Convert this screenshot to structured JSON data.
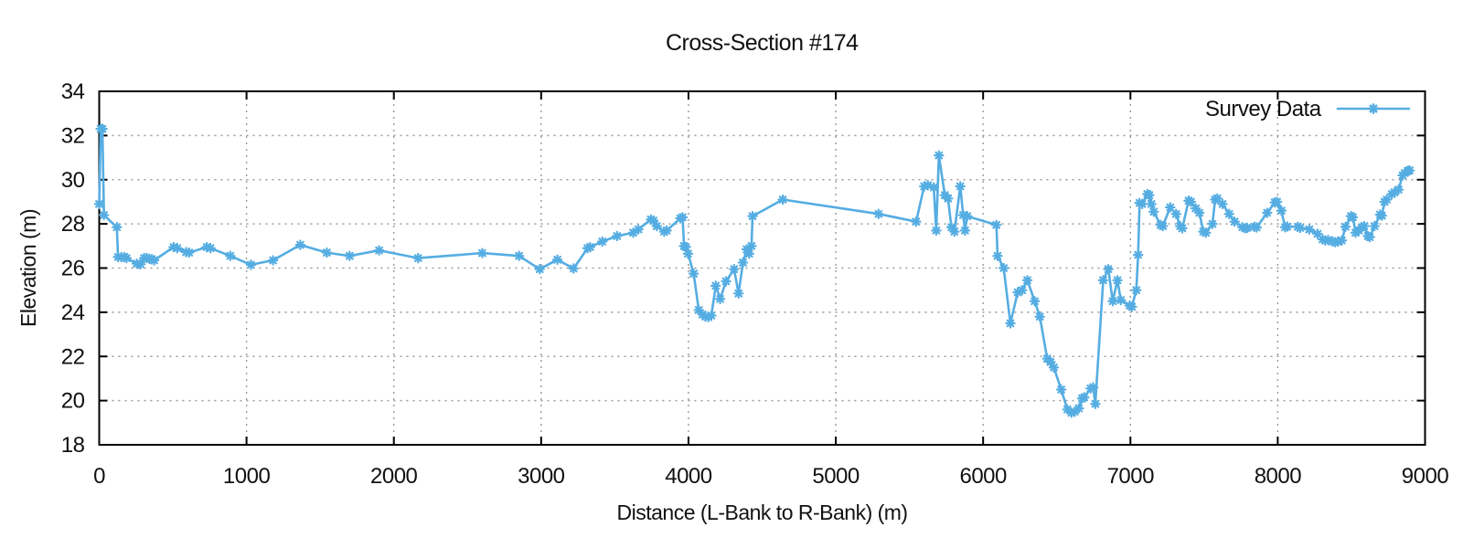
{
  "title": "Cross-Section #174",
  "legend": {
    "label": "Survey Data"
  },
  "colors": {
    "series": "#55ade2",
    "grid": "#9a9a9a",
    "axis": "#000000",
    "text": "#111111",
    "background": "#ffffff"
  },
  "chart_data": {
    "type": "line",
    "title": "Cross-Section #174",
    "xlabel": "Distance (L-Bank to R-Bank) (m)",
    "ylabel": "Elevation (m)",
    "xlim": [
      0,
      9000
    ],
    "ylim": [
      18,
      34
    ],
    "xticks": [
      0,
      1000,
      2000,
      3000,
      4000,
      5000,
      6000,
      7000,
      8000,
      9000
    ],
    "yticks": [
      18,
      20,
      22,
      24,
      26,
      28,
      30,
      32,
      34
    ],
    "grid": true,
    "legend_position": "top-right",
    "marker": "asterisk",
    "series": [
      {
        "name": "Survey Data",
        "points": [
          [
            0,
            28.9
          ],
          [
            10,
            32.3
          ],
          [
            22,
            32.3
          ],
          [
            32,
            28.4
          ],
          [
            120,
            27.85
          ],
          [
            128,
            26.5
          ],
          [
            150,
            26.5
          ],
          [
            170,
            26.5
          ],
          [
            185,
            26.45
          ],
          [
            255,
            26.2
          ],
          [
            280,
            26.17
          ],
          [
            305,
            26.45
          ],
          [
            322,
            26.46
          ],
          [
            340,
            26.42
          ],
          [
            357,
            26.4
          ],
          [
            373,
            26.35
          ],
          [
            505,
            26.95
          ],
          [
            530,
            26.9
          ],
          [
            590,
            26.72
          ],
          [
            610,
            26.7
          ],
          [
            730,
            26.95
          ],
          [
            755,
            26.9
          ],
          [
            890,
            26.55
          ],
          [
            1030,
            26.15
          ],
          [
            1180,
            26.35
          ],
          [
            1365,
            27.05
          ],
          [
            1545,
            26.7
          ],
          [
            1700,
            26.55
          ],
          [
            1900,
            26.8
          ],
          [
            2165,
            26.45
          ],
          [
            2600,
            26.68
          ],
          [
            2850,
            26.55
          ],
          [
            2990,
            25.95
          ],
          [
            3110,
            26.38
          ],
          [
            3220,
            25.98
          ],
          [
            3315,
            26.9
          ],
          [
            3332,
            26.95
          ],
          [
            3415,
            27.2
          ],
          [
            3515,
            27.45
          ],
          [
            3625,
            27.6
          ],
          [
            3660,
            27.75
          ],
          [
            3745,
            28.2
          ],
          [
            3762,
            28.15
          ],
          [
            3785,
            27.9
          ],
          [
            3835,
            27.65
          ],
          [
            3852,
            27.7
          ],
          [
            3945,
            28.25
          ],
          [
            3960,
            28.3
          ],
          [
            3970,
            27.0
          ],
          [
            3982,
            26.95
          ],
          [
            3997,
            26.65
          ],
          [
            4035,
            25.75
          ],
          [
            4070,
            24.1
          ],
          [
            4095,
            23.9
          ],
          [
            4115,
            23.8
          ],
          [
            4135,
            23.78
          ],
          [
            4155,
            23.85
          ],
          [
            4185,
            25.2
          ],
          [
            4215,
            24.6
          ],
          [
            4255,
            25.4
          ],
          [
            4310,
            25.95
          ],
          [
            4340,
            24.85
          ],
          [
            4370,
            26.25
          ],
          [
            4395,
            26.85
          ],
          [
            4412,
            26.65
          ],
          [
            4428,
            27.0
          ],
          [
            4435,
            28.35
          ],
          [
            4640,
            29.1
          ],
          [
            5290,
            28.45
          ],
          [
            5545,
            28.1
          ],
          [
            5600,
            29.7
          ],
          [
            5625,
            29.75
          ],
          [
            5665,
            29.65
          ],
          [
            5682,
            27.7
          ],
          [
            5700,
            31.1
          ],
          [
            5740,
            29.3
          ],
          [
            5762,
            29.15
          ],
          [
            5785,
            27.85
          ],
          [
            5805,
            27.65
          ],
          [
            5845,
            29.7
          ],
          [
            5865,
            28.4
          ],
          [
            5877,
            27.7
          ],
          [
            5892,
            28.35
          ],
          [
            6090,
            27.95
          ],
          [
            6098,
            26.55
          ],
          [
            6140,
            26.0
          ],
          [
            6185,
            23.5
          ],
          [
            6235,
            24.9
          ],
          [
            6265,
            25.0
          ],
          [
            6300,
            25.45
          ],
          [
            6350,
            24.5
          ],
          [
            6385,
            23.8
          ],
          [
            6435,
            21.9
          ],
          [
            6458,
            21.75
          ],
          [
            6480,
            21.5
          ],
          [
            6530,
            20.5
          ],
          [
            6572,
            19.6
          ],
          [
            6600,
            19.45
          ],
          [
            6622,
            19.5
          ],
          [
            6650,
            19.65
          ],
          [
            6672,
            20.1
          ],
          [
            6687,
            20.15
          ],
          [
            6730,
            20.55
          ],
          [
            6747,
            20.6
          ],
          [
            6762,
            19.85
          ],
          [
            6815,
            25.45
          ],
          [
            6850,
            25.95
          ],
          [
            6880,
            24.5
          ],
          [
            6912,
            25.45
          ],
          [
            6935,
            24.55
          ],
          [
            6995,
            24.3
          ],
          [
            7010,
            24.25
          ],
          [
            7040,
            25.0
          ],
          [
            7052,
            26.6
          ],
          [
            7062,
            28.95
          ],
          [
            7080,
            28.9
          ],
          [
            7115,
            29.35
          ],
          [
            7128,
            29.3
          ],
          [
            7142,
            28.9
          ],
          [
            7158,
            28.55
          ],
          [
            7205,
            27.95
          ],
          [
            7220,
            27.9
          ],
          [
            7270,
            28.75
          ],
          [
            7310,
            28.45
          ],
          [
            7338,
            27.9
          ],
          [
            7352,
            27.8
          ],
          [
            7395,
            29.05
          ],
          [
            7410,
            29.0
          ],
          [
            7443,
            28.7
          ],
          [
            7468,
            28.5
          ],
          [
            7495,
            27.65
          ],
          [
            7512,
            27.6
          ],
          [
            7557,
            28.0
          ],
          [
            7575,
            29.1
          ],
          [
            7590,
            29.15
          ],
          [
            7625,
            28.9
          ],
          [
            7670,
            28.45
          ],
          [
            7707,
            28.1
          ],
          [
            7760,
            27.85
          ],
          [
            7778,
            27.8
          ],
          [
            7792,
            27.82
          ],
          [
            7841,
            27.87
          ],
          [
            7857,
            27.84
          ],
          [
            7928,
            28.5
          ],
          [
            7980,
            28.97
          ],
          [
            7995,
            29.0
          ],
          [
            8025,
            28.6
          ],
          [
            8050,
            27.85
          ],
          [
            8065,
            27.88
          ],
          [
            8136,
            27.87
          ],
          [
            8152,
            27.82
          ],
          [
            8214,
            27.75
          ],
          [
            8270,
            27.55
          ],
          [
            8305,
            27.3
          ],
          [
            8322,
            27.25
          ],
          [
            8342,
            27.27
          ],
          [
            8373,
            27.2
          ],
          [
            8390,
            27.17
          ],
          [
            8408,
            27.2
          ],
          [
            8435,
            27.25
          ],
          [
            8460,
            27.87
          ],
          [
            8497,
            28.35
          ],
          [
            8510,
            28.3
          ],
          [
            8528,
            27.6
          ],
          [
            8550,
            27.7
          ],
          [
            8570,
            27.85
          ],
          [
            8587,
            27.9
          ],
          [
            8612,
            27.45
          ],
          [
            8625,
            27.4
          ],
          [
            8657,
            27.9
          ],
          [
            8695,
            28.42
          ],
          [
            8707,
            28.37
          ],
          [
            8725,
            29.0
          ],
          [
            8740,
            29.1
          ],
          [
            8775,
            29.35
          ],
          [
            8792,
            29.43
          ],
          [
            8820,
            29.55
          ],
          [
            8848,
            30.2
          ],
          [
            8862,
            30.3
          ],
          [
            8883,
            30.4
          ],
          [
            8895,
            30.42
          ]
        ]
      }
    ]
  }
}
